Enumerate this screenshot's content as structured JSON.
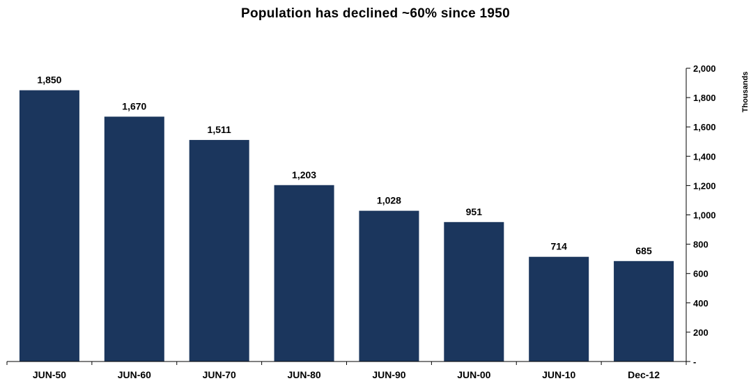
{
  "chart_data": {
    "type": "bar",
    "title": "Population has declined ~60% since 1950",
    "categories": [
      "JUN-50",
      "JUN-60",
      "JUN-70",
      "JUN-80",
      "JUN-90",
      "JUN-00",
      "JUN-10",
      "Dec-12"
    ],
    "values": [
      1850,
      1670,
      1511,
      1203,
      1028,
      951,
      714,
      685
    ],
    "data_labels": [
      "1,850",
      "1,670",
      "1,511",
      "1,203",
      "1,028",
      "951",
      "714",
      "685"
    ],
    "xlabel": "",
    "ylabel": "Thousands",
    "y_axis_position": "right",
    "ylim": [
      0,
      2000
    ],
    "y_ticks": [
      0,
      200,
      400,
      600,
      800,
      1000,
      1200,
      1400,
      1600,
      1800,
      2000
    ],
    "y_tick_labels": [
      "-",
      "200",
      "400",
      "600",
      "800",
      "1,000",
      "1,200",
      "1,400",
      "1,600",
      "1,800",
      "2,000"
    ],
    "grid": false,
    "legend": "none",
    "colors": {
      "bar": "#1b365d",
      "text": "#000000",
      "axis": "#000000"
    }
  }
}
